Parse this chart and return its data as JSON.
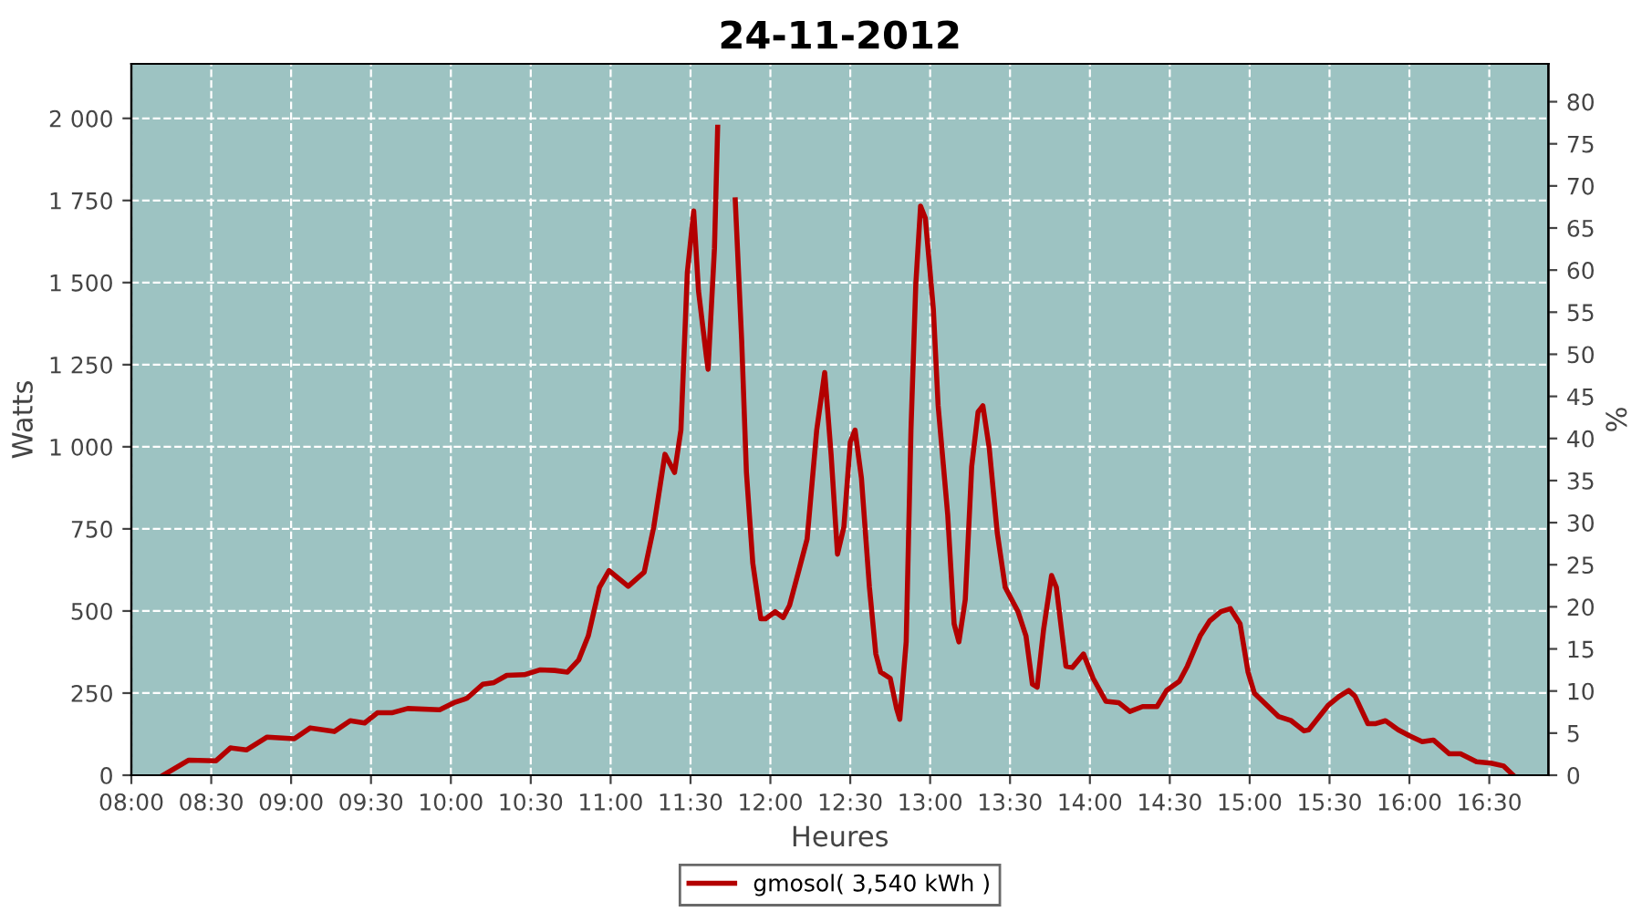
{
  "chart_data": {
    "type": "line",
    "title": "24-11-2012",
    "xlabel": "Heures",
    "ylabel": "Watts",
    "y2label": "%",
    "xlim": [
      8,
      16.87
    ],
    "xticks": [
      {
        "value": 8,
        "label": "08:00"
      },
      {
        "value": 8.5,
        "label": "08:30"
      },
      {
        "value": 9,
        "label": "09:00"
      },
      {
        "value": 9.5,
        "label": "09:30"
      },
      {
        "value": 10,
        "label": "10:00"
      },
      {
        "value": 10.5,
        "label": "10:30"
      },
      {
        "value": 11,
        "label": "11:00"
      },
      {
        "value": 11.5,
        "label": "11:30"
      },
      {
        "value": 12,
        "label": "12:00"
      },
      {
        "value": 12.5,
        "label": "12:30"
      },
      {
        "value": 13,
        "label": "13:00"
      },
      {
        "value": 13.5,
        "label": "13:30"
      },
      {
        "value": 14,
        "label": "14:00"
      },
      {
        "value": 14.5,
        "label": "14:30"
      },
      {
        "value": 15,
        "label": "15:00"
      },
      {
        "value": 15.5,
        "label": "15:30"
      },
      {
        "value": 16,
        "label": "16:00"
      },
      {
        "value": 16.5,
        "label": "16:30"
      }
    ],
    "ylim": [
      0,
      2166
    ],
    "yticks": [
      0,
      250,
      500,
      750,
      {
        "value": 1000,
        "label": "1 000"
      },
      {
        "value": 1250,
        "label": "1 250"
      },
      {
        "value": 1500,
        "label": "1 500"
      },
      {
        "value": 1750,
        "label": "1 750"
      },
      {
        "value": 2000,
        "label": "2 000"
      }
    ],
    "y2lim": [
      0,
      84.5
    ],
    "y2ticks": [
      0,
      5,
      10,
      15,
      20,
      25,
      30,
      35,
      40,
      45,
      50,
      55,
      60,
      65,
      70,
      75,
      80
    ],
    "grid": true,
    "legend": "bottom",
    "marker": "none",
    "line_style": "solid",
    "series": [
      {
        "name": "gmosol( 3,540 kWh )",
        "color": "#b30000",
        "x": [
          8.2,
          8.36,
          8.53,
          8.62,
          8.72,
          8.85,
          9.02,
          9.12,
          9.27,
          9.37,
          9.46,
          9.54,
          9.63,
          9.73,
          9.93,
          10.02,
          10.1,
          10.2,
          10.27,
          10.35,
          10.46,
          10.56,
          10.65,
          10.73,
          10.8,
          10.86,
          10.93,
          10.99,
          11.11,
          11.21,
          11.27,
          11.34,
          11.4,
          11.44,
          11.48,
          11.52,
          11.55,
          11.6,
          11.61,
          11.65,
          11.67,
          11.7,
          11.74,
          11.78,
          11.82,
          11.85,
          11.89,
          11.94,
          11.97,
          12.03,
          12.08,
          12.12,
          12.18,
          12.23,
          12.29,
          12.34,
          12.38,
          12.42,
          12.46,
          12.5,
          12.53,
          12.57,
          12.62,
          12.66,
          12.69,
          12.75,
          12.79,
          12.81,
          12.85,
          12.88,
          12.91,
          12.94,
          12.97,
          13.02,
          13.05,
          13.11,
          13.15,
          13.18,
          13.22,
          13.26,
          13.3,
          13.33,
          13.37,
          13.42,
          13.47,
          13.55,
          13.6,
          13.64,
          13.67,
          13.71,
          13.76,
          13.79,
          13.85,
          13.89,
          13.96,
          14.02,
          14.1,
          14.18,
          14.25,
          14.33,
          14.42,
          14.48,
          14.56,
          14.61,
          14.69,
          14.75,
          14.82,
          14.88,
          14.94,
          14.99,
          15.03,
          15.11,
          15.18,
          15.26,
          15.34,
          15.37,
          15.49,
          15.56,
          15.62,
          15.66,
          15.74,
          15.79,
          15.85,
          15.93,
          16.0,
          16.08,
          16.15,
          16.25,
          16.32,
          16.42,
          16.51,
          16.59,
          16.65
        ],
        "values": [
          0,
          46,
          44,
          83,
          77,
          116,
          111,
          144,
          133,
          166,
          159,
          190,
          190,
          203,
          199,
          221,
          234,
          277,
          282,
          304,
          306,
          321,
          319,
          314,
          351,
          424,
          572,
          623,
          575,
          618,
          756,
          977,
          922,
          1051,
          1530,
          1718,
          1475,
          1272,
          1236,
          1604,
          1973,
          null,
          null,
          1752,
          1327,
          922,
          645,
          476,
          476,
          498,
          480,
          517,
          627,
          719,
          1051,
          1226,
          977,
          673,
          756,
          1014,
          1051,
          904,
          572,
          369,
          314,
          295,
          203,
          170,
          406,
          1051,
          1493,
          1733,
          1696,
          1420,
          1125,
          793,
          461,
          406,
          535,
          940,
          1106,
          1125,
          996,
          738,
          572,
          498,
          424,
          277,
          268,
          443,
          608,
          572,
          332,
          328,
          369,
          295,
          225,
          221,
          194,
          209,
          209,
          258,
          286,
          332,
          424,
          470,
          498,
          507,
          461,
          314,
          249,
          212,
          179,
          166,
          135,
          138,
          212,
          240,
          258,
          240,
          157,
          157,
          166,
          138,
          120,
          102,
          107,
          65,
          65,
          41,
          37,
          28,
          0
        ]
      }
    ]
  }
}
